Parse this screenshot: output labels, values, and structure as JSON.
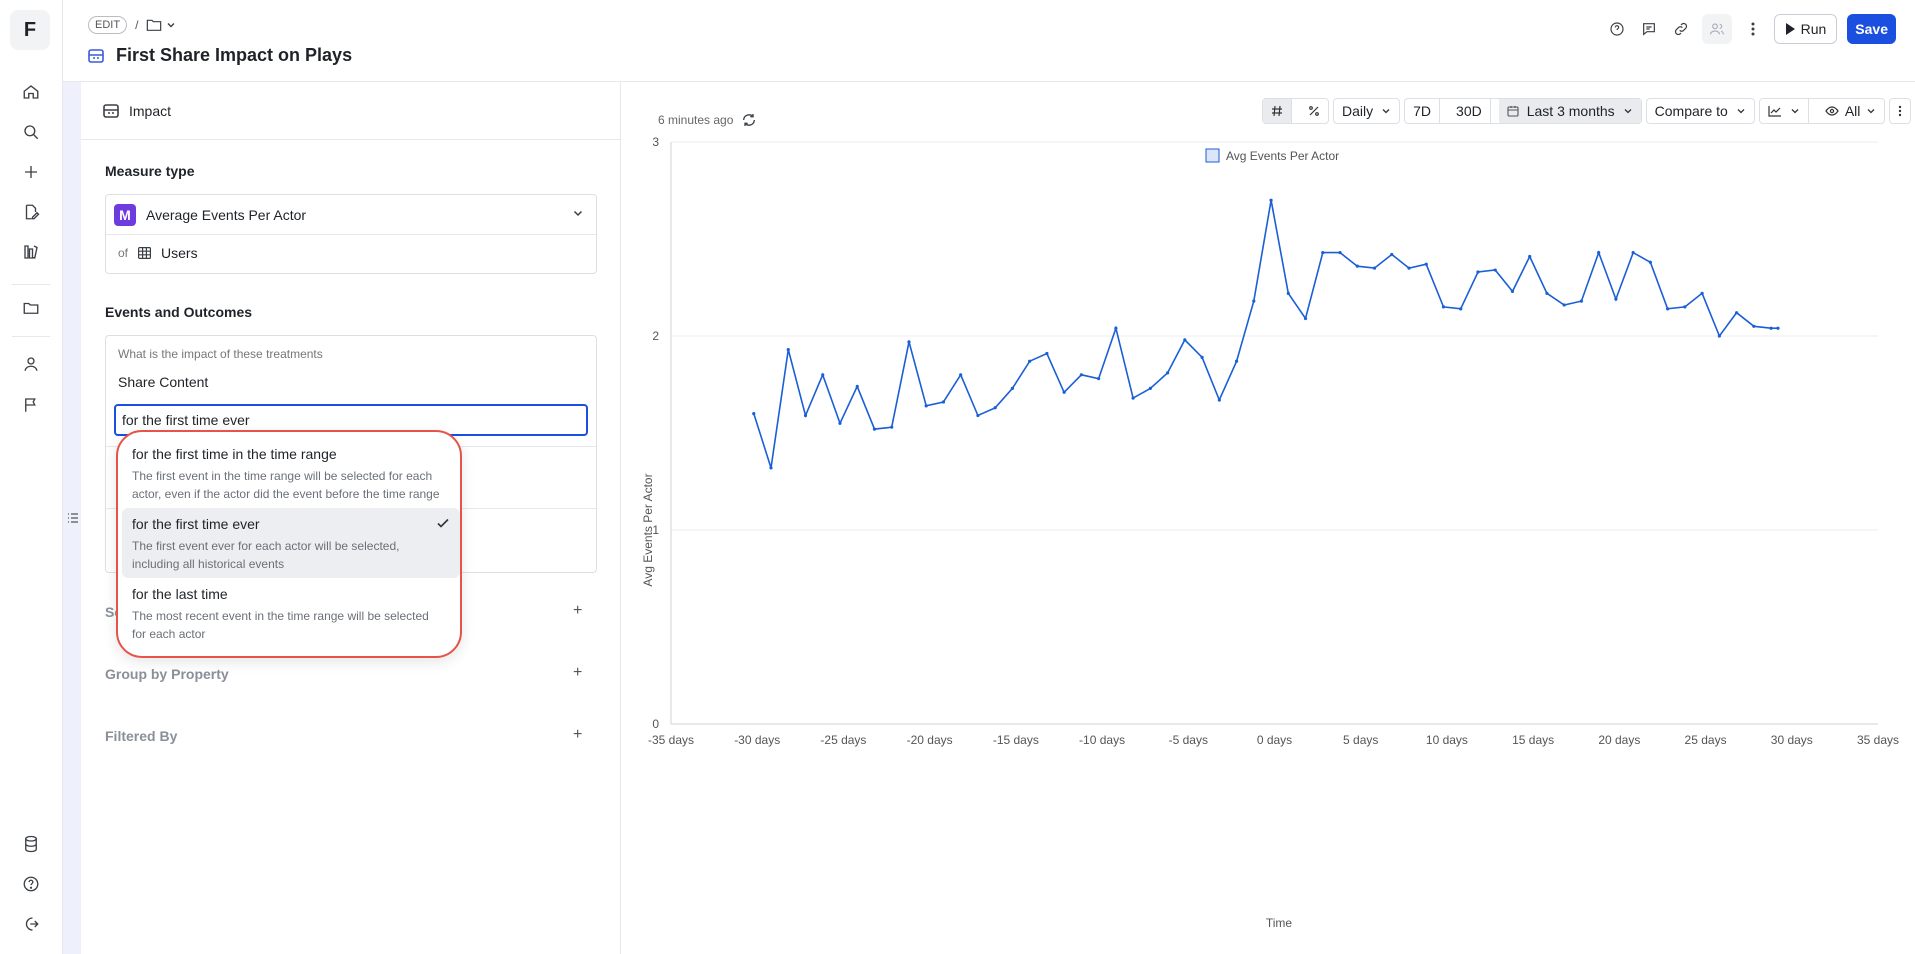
{
  "app": {
    "logo_letter": "F"
  },
  "header": {
    "edit_badge": "EDIT",
    "separator": "/",
    "title": "First Share Impact on Plays",
    "run_label": "Run",
    "save_label": "Save"
  },
  "panel": {
    "section_title": "Impact",
    "measure_type_label": "Measure type",
    "measure_badge": "M",
    "measure_value": "Average Events Per Actor",
    "of_label": "of",
    "of_value": "Users",
    "events_label": "Events and Outcomes",
    "events_hint": "What is the impact of these treatments",
    "event_name": "Share Content",
    "frequency_input": "for the first time ever",
    "segment_label": "Se",
    "group_by_label": "Group by Property",
    "filtered_by_label": "Filtered By",
    "plus": "+"
  },
  "dropdown": {
    "options": [
      {
        "title": "for the first time in the time range",
        "desc": "The first event in the time range will be selected for each actor, even if the actor did the event before the time range"
      },
      {
        "title": "for the first time ever",
        "desc": "The first event ever for each actor will be selected, including all historical events",
        "selected": true
      },
      {
        "title": "for the last time",
        "desc": "The most recent event in the time range will be selected for each actor"
      }
    ]
  },
  "chart_controls": {
    "updated": "6 minutes ago",
    "granularity": "Daily",
    "range_7d": "7D",
    "range_30d": "30D",
    "range_selected": "Last 3 months",
    "compare": "Compare to",
    "series_filter": "All"
  },
  "chart_data": {
    "type": "line",
    "legend": [
      "Avg Events Per Actor"
    ],
    "xlabel": "Time",
    "ylabel": "Avg Events Per Actor",
    "xlim": [
      -35,
      35
    ],
    "ylim": [
      0,
      3
    ],
    "x_ticks": [
      -35,
      -30,
      -25,
      -20,
      -15,
      -10,
      -5,
      0,
      5,
      10,
      15,
      20,
      25,
      30,
      35
    ],
    "x_tick_labels": [
      "-35 days",
      "-30 days",
      "-25 days",
      "-20 days",
      "-15 days",
      "-10 days",
      "-5 days",
      "0 days",
      "5 days",
      "10 days",
      "15 days",
      "20 days",
      "25 days",
      "30 days",
      "35 days"
    ],
    "y_ticks": [
      0,
      1,
      2,
      3
    ],
    "y_tick_labels": [
      "0",
      "1",
      "2",
      "3"
    ],
    "grid": true,
    "series": [
      {
        "name": "Avg Events Per Actor",
        "color": "#1a5fd6",
        "x": [
          -30.2,
          -29.2,
          -28.2,
          -27.2,
          -26.2,
          -25.2,
          -24.2,
          -23.2,
          -22.2,
          -21.2,
          -20.2,
          -19.2,
          -18.2,
          -17.2,
          -16.2,
          -15.2,
          -14.2,
          -13.2,
          -12.2,
          -11.2,
          -10.2,
          -9.2,
          -8.2,
          -7.2,
          -6.2,
          -5.2,
          -4.2,
          -3.2,
          -2.2,
          -1.2,
          -0.2,
          0.8,
          1.8,
          2.8,
          3.8,
          4.8,
          5.8,
          6.8,
          7.8,
          8.8,
          9.8,
          10.8,
          11.8,
          12.8,
          13.8,
          14.8,
          15.8,
          16.8,
          17.8,
          18.8,
          19.8,
          20.8,
          21.8,
          22.8,
          23.8,
          24.8,
          25.8,
          26.8,
          27.8,
          28.8,
          29.2
        ],
        "values": [
          1.6,
          1.32,
          1.93,
          1.59,
          1.8,
          1.55,
          1.74,
          1.52,
          1.53,
          1.97,
          1.64,
          1.66,
          1.8,
          1.59,
          1.63,
          1.73,
          1.87,
          1.91,
          1.71,
          1.8,
          1.78,
          2.04,
          1.68,
          1.73,
          1.81,
          1.98,
          1.89,
          1.67,
          1.87,
          2.18,
          2.7,
          2.22,
          2.09,
          2.43,
          2.43,
          2.36,
          2.35,
          2.42,
          2.35,
          2.37,
          2.15,
          2.14,
          2.33,
          2.34,
          2.23,
          2.41,
          2.22,
          2.16,
          2.18,
          2.43,
          2.19,
          2.43,
          2.38,
          2.14,
          2.15,
          2.22,
          2.0,
          2.12,
          2.05,
          2.04,
          2.04
        ]
      }
    ]
  }
}
